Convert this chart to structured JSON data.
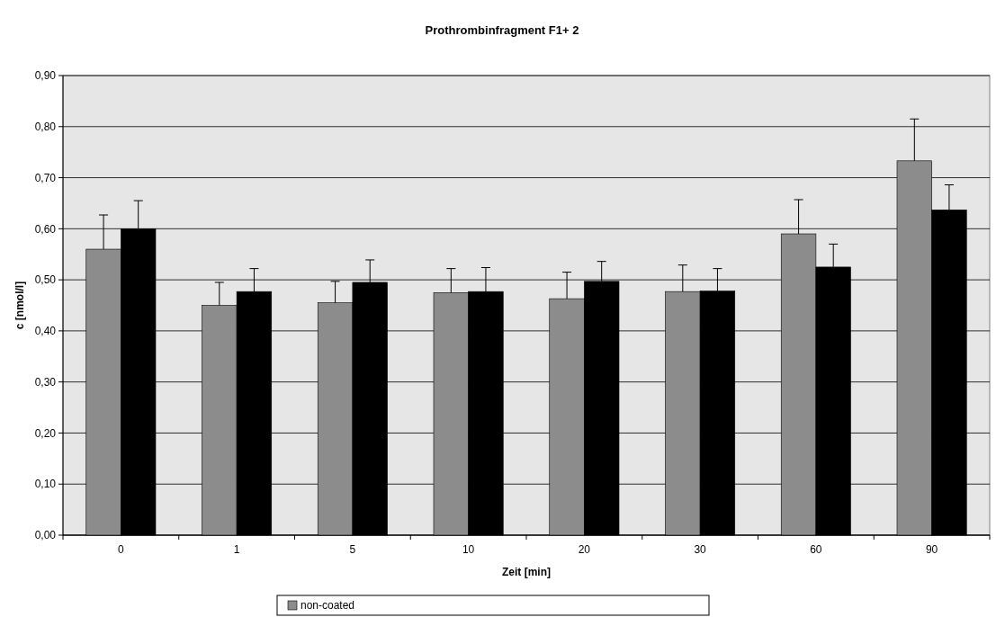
{
  "chart_data": {
    "type": "bar",
    "title": "Prothrombinfragment F1+ 2",
    "xlabel": "Zeit [min]",
    "ylabel": "c [nmol/l]",
    "categories": [
      "0",
      "1",
      "5",
      "10",
      "20",
      "30",
      "60",
      "90"
    ],
    "series": [
      {
        "name": "non-coated",
        "color": "#8c8c8c",
        "values": [
          0.56,
          0.45,
          0.455,
          0.475,
          0.463,
          0.477,
          0.59,
          0.733
        ],
        "errors": [
          [
            0.56,
            0.627
          ],
          [
            0.45,
            0.495
          ],
          [
            0.455,
            0.497
          ],
          [
            0.475,
            0.522
          ],
          [
            0.463,
            0.515
          ],
          [
            0.477,
            0.529
          ],
          [
            0.59,
            0.657
          ],
          [
            0.733,
            0.815
          ]
        ]
      },
      {
        "color": "#000000",
        "values": [
          0.6,
          0.477,
          0.495,
          0.477,
          0.497,
          0.478,
          0.525,
          0.637
        ],
        "errors": [
          [
            0.6,
            0.655
          ],
          [
            0.477,
            0.522
          ],
          [
            0.495,
            0.539
          ],
          [
            0.477,
            0.524
          ],
          [
            0.497,
            0.536
          ],
          [
            0.478,
            0.522
          ],
          [
            0.525,
            0.57
          ],
          [
            0.637,
            0.686
          ]
        ]
      }
    ],
    "ylim": [
      0,
      0.9
    ],
    "yticks": [
      {
        "value": 0,
        "label": "0,00"
      },
      {
        "value": 0.1,
        "label": "0,10"
      },
      {
        "value": 0.2,
        "label": "0,20"
      },
      {
        "value": 0.3,
        "label": "0,30"
      },
      {
        "value": 0.4,
        "label": "0,40"
      },
      {
        "value": 0.5,
        "label": "0,50"
      },
      {
        "value": 0.6,
        "label": "0,60"
      },
      {
        "value": 0.7,
        "label": "0,70"
      },
      {
        "value": 0.8,
        "label": "0,80"
      },
      {
        "value": 0.9,
        "label": "0,90"
      }
    ],
    "grid": "y",
    "legend": "bottom"
  }
}
